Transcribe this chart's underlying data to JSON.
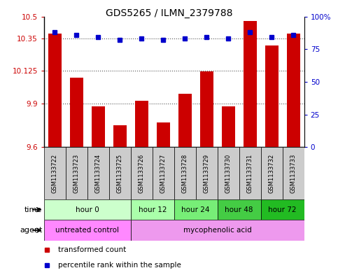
{
  "title": "GDS5265 / ILMN_2379788",
  "samples": [
    "GSM1133722",
    "GSM1133723",
    "GSM1133724",
    "GSM1133725",
    "GSM1133726",
    "GSM1133727",
    "GSM1133728",
    "GSM1133729",
    "GSM1133730",
    "GSM1133731",
    "GSM1133732",
    "GSM1133733"
  ],
  "transformed_counts": [
    10.38,
    10.08,
    9.88,
    9.75,
    9.92,
    9.77,
    9.97,
    10.12,
    9.88,
    10.47,
    10.3,
    10.38
  ],
  "percentile_ranks": [
    88,
    86,
    84,
    82,
    83,
    82,
    83,
    84,
    83,
    88,
    84,
    86
  ],
  "ymin": 9.6,
  "ymax": 10.5,
  "yticks": [
    9.6,
    9.9,
    10.125,
    10.35,
    10.5
  ],
  "ytick_labels": [
    "9.6",
    "9.9",
    "10.125",
    "10.35",
    "10.5"
  ],
  "right_yticks": [
    0,
    25,
    50,
    75,
    100
  ],
  "right_ytick_labels": [
    "0",
    "25",
    "50",
    "75",
    "100%"
  ],
  "bar_color": "#cc0000",
  "dot_color": "#0000cc",
  "bar_width": 0.6,
  "time_groups": [
    {
      "label": "hour 0",
      "start": 0,
      "end": 4,
      "color": "#ccffcc"
    },
    {
      "label": "hour 12",
      "start": 4,
      "end": 6,
      "color": "#aaffaa"
    },
    {
      "label": "hour 24",
      "start": 6,
      "end": 8,
      "color": "#77ee77"
    },
    {
      "label": "hour 48",
      "start": 8,
      "end": 10,
      "color": "#44cc44"
    },
    {
      "label": "hour 72",
      "start": 10,
      "end": 12,
      "color": "#22bb22"
    }
  ],
  "agent_groups": [
    {
      "label": "untreated control",
      "start": 0,
      "end": 4,
      "color": "#ff88ff"
    },
    {
      "label": "mycophenolic acid",
      "start": 4,
      "end": 12,
      "color": "#ee99ee"
    }
  ],
  "legend_red_label": "transformed count",
  "legend_blue_label": "percentile rank within the sample",
  "bar_color_hex": "#cc0000",
  "dot_color_hex": "#0000cc",
  "grid_color": "#555555",
  "sample_box_color": "#cccccc",
  "ylabel_color_red": "#cc0000",
  "ylabel_color_blue": "#0000cc",
  "bg_color": "#ffffff"
}
